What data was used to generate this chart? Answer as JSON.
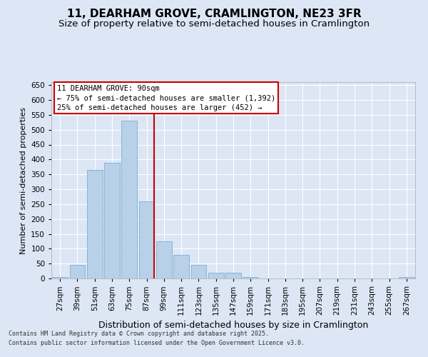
{
  "title": "11, DEARHAM GROVE, CRAMLINGTON, NE23 3FR",
  "subtitle": "Size of property relative to semi-detached houses in Cramlington",
  "xlabel": "Distribution of semi-detached houses by size in Cramlington",
  "ylabel": "Number of semi-detached properties",
  "footer_line1": "Contains HM Land Registry data © Crown copyright and database right 2025.",
  "footer_line2": "Contains public sector information licensed under the Open Government Licence v3.0.",
  "bin_labels": [
    "27sqm",
    "39sqm",
    "51sqm",
    "63sqm",
    "75sqm",
    "87sqm",
    "99sqm",
    "111sqm",
    "123sqm",
    "135sqm",
    "147sqm",
    "159sqm",
    "171sqm",
    "183sqm",
    "195sqm",
    "207sqm",
    "219sqm",
    "231sqm",
    "243sqm",
    "255sqm",
    "267sqm"
  ],
  "bar_values": [
    5,
    45,
    365,
    390,
    530,
    260,
    125,
    80,
    45,
    20,
    20,
    5,
    0,
    0,
    0,
    0,
    0,
    0,
    0,
    0,
    5
  ],
  "bar_color": "#b8d0e8",
  "bar_edge_color": "#7aafd4",
  "vline_color": "#cc0000",
  "vline_x": 5.43,
  "ylim": [
    0,
    660
  ],
  "yticks": [
    0,
    50,
    100,
    150,
    200,
    250,
    300,
    350,
    400,
    450,
    500,
    550,
    600,
    650
  ],
  "background_color": "#dce6f5",
  "plot_background_color": "#dce6f5",
  "annotation_title": "11 DEARHAM GROVE: 90sqm",
  "annotation_line1": "← 75% of semi-detached houses are smaller (1,392)",
  "annotation_line2": "25% of semi-detached houses are larger (452) →",
  "annotation_box_color": "#ffffff",
  "annotation_box_edge_color": "#cc0000",
  "title_fontsize": 11,
  "subtitle_fontsize": 9.5,
  "tick_fontsize": 7.5,
  "ylabel_fontsize": 8,
  "xlabel_fontsize": 9,
  "footer_fontsize": 6,
  "annotation_fontsize": 7.5
}
